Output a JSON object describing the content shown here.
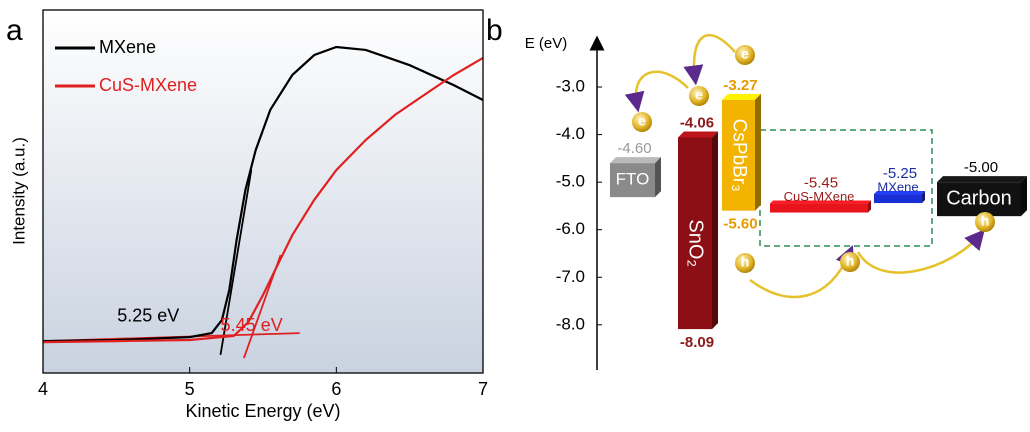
{
  "panel_labels": [
    "a",
    "b"
  ],
  "chart_data": [
    {
      "type": "line",
      "x_label": "Kinetic Energy (eV)",
      "y_label": "Intensity (a.u.)",
      "xlim": [
        4,
        7
      ],
      "xticks": [
        4,
        5,
        6,
        7
      ],
      "ylim": [
        0,
        1
      ],
      "legend": "upper-left",
      "series": [
        {
          "name": "MXene",
          "color": "#000000",
          "x": [
            4,
            4.5,
            5.0,
            5.15,
            5.22,
            5.27,
            5.32,
            5.38,
            5.45,
            5.55,
            5.7,
            5.85,
            6.0,
            6.2,
            6.5,
            6.8,
            7.0
          ],
          "values": [
            0.088,
            0.091,
            0.099,
            0.11,
            0.146,
            0.229,
            0.366,
            0.504,
            0.614,
            0.725,
            0.821,
            0.876,
            0.898,
            0.89,
            0.848,
            0.793,
            0.752
          ]
        },
        {
          "name": "CuS-MXene",
          "color": "#e02020",
          "x": [
            4,
            4.5,
            5.0,
            5.3,
            5.4,
            5.5,
            5.6,
            5.7,
            5.85,
            6.0,
            6.2,
            6.4,
            6.6,
            6.8,
            7.0
          ],
          "values": [
            0.085,
            0.088,
            0.091,
            0.102,
            0.14,
            0.215,
            0.298,
            0.38,
            0.477,
            0.559,
            0.642,
            0.711,
            0.766,
            0.821,
            0.868
          ]
        }
      ],
      "fit_lines": [
        {
          "color": "#000000",
          "x": [
            5.21,
            5.42
          ],
          "values": [
            0.05,
            0.559
          ]
        },
        {
          "color": "#e02020",
          "x": [
            5.37,
            5.62
          ],
          "values": [
            0.041,
            0.325
          ]
        },
        {
          "color": "#e02020",
          "x": [
            4,
            5.75
          ],
          "values": [
            0.088,
            0.11
          ]
        }
      ],
      "annotations": [
        {
          "text": "5.25 eV",
          "color": "#000000",
          "x": 5.25,
          "y": 0.155
        },
        {
          "text": "5.45 eV",
          "color": "#e02020",
          "x": 5.45,
          "y": 0.145
        }
      ]
    },
    {
      "type": "energy-levels",
      "y_label": "E (eV)",
      "ylim": [
        -8.95,
        -2.2
      ],
      "yticks": [
        {
          "value": -3,
          "label": "-3.0"
        },
        {
          "value": -4,
          "label": "-4.0"
        },
        {
          "value": -5,
          "label": "-5.0"
        },
        {
          "value": -6,
          "label": "-6.0"
        },
        {
          "value": -7,
          "label": "-7.0"
        },
        {
          "value": -8,
          "label": "-8.0"
        }
      ],
      "layers": [
        {
          "name": "FTO",
          "color": "#8a8a8a",
          "text_color": "#9a9a9a",
          "values": [
            -4.6
          ],
          "value_labels": [
            "-4.60"
          ]
        },
        {
          "name": "SnO₂",
          "color": "#8b0f14",
          "text_color": "#8b1a1a",
          "values": [
            -4.06,
            -8.09
          ]
        },
        {
          "name": "CsPbBr₃",
          "color": "#f2b400",
          "text_color": "#e69b00",
          "values": [
            -3.27,
            -5.6
          ],
          "value_labels": [
            "-3.27",
            "-5.60"
          ]
        },
        {
          "name": "CuS-MXene",
          "color": "#e8141c",
          "text_color": "#9b1b1b",
          "values": [
            -5.45
          ]
        },
        {
          "name": "MXene",
          "color": "#1a2fd6",
          "text_color": "#1a2fa0",
          "values": [
            -5.25
          ]
        },
        {
          "name": "Carbon",
          "color": "#111111",
          "text_color": "#000000",
          "values": [
            -5
          ],
          "value_labels": [
            "-5.00"
          ]
        }
      ],
      "carriers": {
        "electron": "e",
        "hole": "h"
      }
    }
  ]
}
